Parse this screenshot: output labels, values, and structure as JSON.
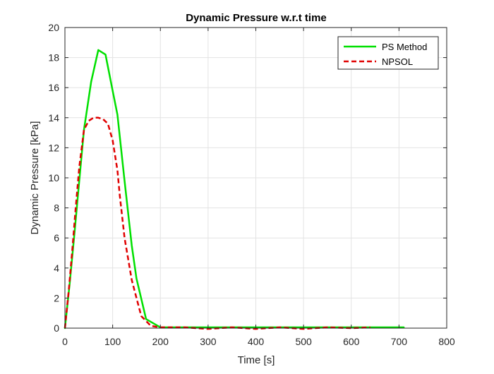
{
  "chart_data": {
    "type": "line",
    "title": "Dynamic Pressure w.r.t time",
    "xlabel": "Time [s]",
    "ylabel": "Dynamic Pressure [kPa]",
    "xlim": [
      0,
      800
    ],
    "ylim": [
      0,
      20
    ],
    "xticks": [
      0,
      100,
      200,
      300,
      400,
      500,
      600,
      700,
      800
    ],
    "yticks": [
      0,
      2,
      4,
      6,
      8,
      10,
      12,
      14,
      16,
      18,
      20
    ],
    "grid": true,
    "legend_position": "top-right",
    "series": [
      {
        "name": "PS Method",
        "color": "#00e000",
        "style": "solid",
        "x": [
          0,
          10,
          20,
          30,
          40,
          55,
          70,
          85,
          100,
          110,
          125,
          140,
          150,
          170,
          200,
          250,
          300,
          400,
          500,
          600,
          710
        ],
        "y": [
          0,
          3,
          6.3,
          9.8,
          13.2,
          16.4,
          18.5,
          18.2,
          15.8,
          14.2,
          9.8,
          5.5,
          3.3,
          0.6,
          0.05,
          0.05,
          0.05,
          0.05,
          0.05,
          0.05,
          0.05
        ]
      },
      {
        "name": "NPSOL",
        "color": "#e00000",
        "style": "dashed",
        "x": [
          0,
          8,
          15,
          22,
          30,
          40,
          50,
          60,
          70,
          80,
          90,
          100,
          110,
          115,
          125,
          140,
          160,
          180,
          200,
          250,
          300,
          350,
          400,
          450,
          500,
          550,
          600,
          640
        ],
        "y": [
          0,
          2.5,
          5.0,
          7.8,
          10.7,
          13.2,
          13.8,
          14.0,
          14.0,
          13.9,
          13.6,
          12.5,
          10.5,
          8.8,
          6.0,
          3.2,
          0.8,
          0.15,
          0.05,
          0.05,
          -0.05,
          0.05,
          -0.05,
          0.05,
          -0.05,
          0.05,
          0.0,
          0.05
        ]
      }
    ]
  }
}
